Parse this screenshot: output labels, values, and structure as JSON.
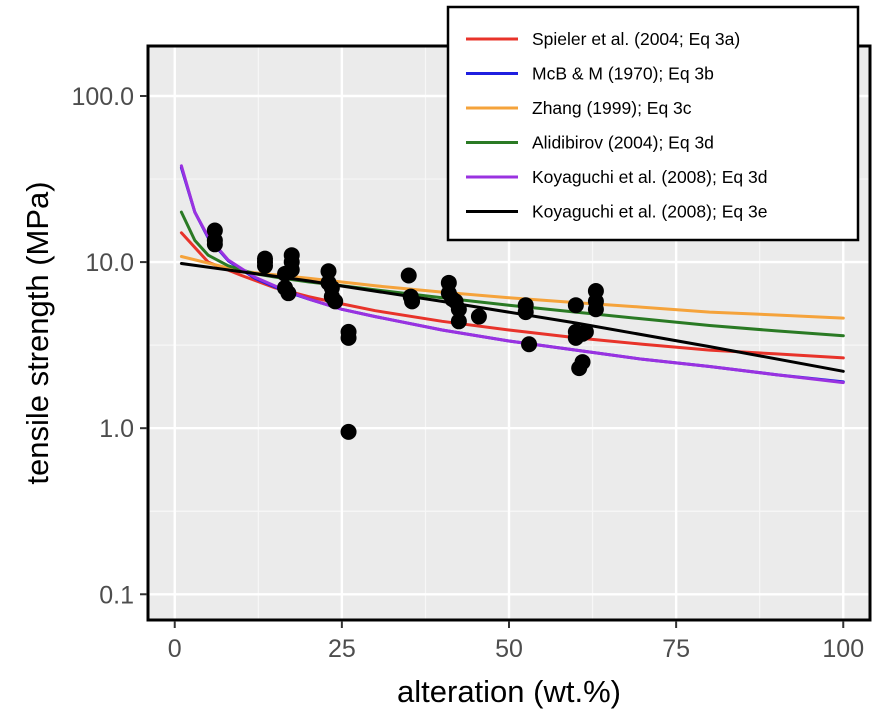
{
  "chart_data": {
    "type": "scatter",
    "xlabel": "alteration (wt.%)",
    "ylabel": "tensile strength (MPa)",
    "xlim": [
      -4,
      104
    ],
    "ylim": [
      0.07,
      200
    ],
    "y_scale": "log",
    "x_ticks": [
      0,
      25,
      50,
      75,
      100
    ],
    "x_tick_labels": [
      "0",
      "25",
      "50",
      "75",
      "100"
    ],
    "y_ticks": [
      0.1,
      1,
      10,
      100
    ],
    "y_tick_labels": [
      "0.1",
      "1.0",
      "10.0",
      "100.0"
    ],
    "grid": true,
    "panel_background": "#ebebeb",
    "legend_position": "top-right",
    "points": {
      "color": "#000000",
      "x": [
        6,
        6,
        6,
        13.5,
        13.5,
        13.5,
        16.5,
        16.5,
        17,
        17.5,
        17.5,
        17.5,
        23,
        23,
        23.5,
        23.5,
        24,
        26,
        26,
        26,
        35,
        35.3,
        35.5,
        41,
        41,
        41.5,
        42,
        42.5,
        42.5,
        45.5,
        52.5,
        52.5,
        53,
        60,
        60,
        60,
        60.5,
        61,
        61,
        61.5,
        63,
        63,
        63
      ],
      "y": [
        15.5,
        13.5,
        12.8,
        10.5,
        10,
        9.5,
        8.5,
        7,
        6.5,
        11,
        10,
        9,
        8.8,
        7.5,
        7,
        6.2,
        5.8,
        3.8,
        3.5,
        0.95,
        8.3,
        6.2,
        5.8,
        7.5,
        6.5,
        6,
        5.8,
        5.2,
        4.4,
        4.7,
        5.5,
        5,
        3.2,
        5.5,
        3.8,
        3.5,
        2.3,
        3.7,
        2.5,
        3.8,
        6.7,
        5.8,
        5.2
      ]
    },
    "series": [
      {
        "name": "Spieler et al. (2004; Eq 3a)",
        "color": "#e8332a",
        "x": [
          1,
          5,
          10,
          15,
          20,
          25,
          30,
          40,
          50,
          60,
          70,
          80,
          90,
          100
        ],
        "y": [
          15,
          10,
          8.3,
          7.0,
          6.2,
          5.6,
          5.1,
          4.4,
          3.9,
          3.5,
          3.2,
          2.95,
          2.8,
          2.65
        ]
      },
      {
        "name": "McB & M (1970); Eq 3b",
        "color": "#1f1fe0",
        "x": [
          1,
          3,
          5,
          8,
          12,
          16,
          20,
          25,
          30,
          40,
          50,
          60,
          70,
          80,
          90,
          100
        ],
        "y": [
          37,
          20,
          14,
          10.2,
          8.0,
          6.8,
          6.0,
          5.2,
          4.7,
          3.9,
          3.35,
          2.95,
          2.6,
          2.35,
          2.1,
          1.9
        ]
      },
      {
        "name": "Zhang (1999); Eq 3c",
        "color": "#f5a33b",
        "x": [
          1,
          10,
          20,
          30,
          40,
          50,
          60,
          70,
          80,
          90,
          100
        ],
        "y": [
          10.8,
          8.8,
          8.0,
          7.2,
          6.6,
          6.1,
          5.7,
          5.35,
          5.0,
          4.8,
          4.6
        ]
      },
      {
        "name": "Alidibirov (2004); Eq 3d",
        "color": "#2a7a24",
        "x": [
          1,
          3,
          5,
          8,
          12,
          16,
          20,
          25,
          30,
          40,
          50,
          60,
          70,
          80,
          90,
          100
        ],
        "y": [
          20,
          13.5,
          11,
          9.5,
          8.5,
          8.0,
          7.6,
          7.2,
          6.8,
          6.1,
          5.5,
          5.0,
          4.55,
          4.15,
          3.85,
          3.6
        ]
      },
      {
        "name": "Koyaguchi et al. (2008); Eq 3d",
        "color": "#9a32e0",
        "x": [
          1,
          3,
          5,
          8,
          12,
          16,
          20,
          25,
          30,
          40,
          50,
          60,
          70,
          80,
          90,
          100
        ],
        "y": [
          38,
          20,
          14.2,
          10.3,
          8.1,
          6.9,
          6.0,
          5.2,
          4.7,
          3.9,
          3.35,
          2.95,
          2.6,
          2.35,
          2.1,
          1.88
        ]
      },
      {
        "name": "Koyaguchi et al. (2008); Eq 3e",
        "color": "#000000",
        "x": [
          1,
          20,
          40,
          60,
          80,
          100
        ],
        "y": [
          9.8,
          7.7,
          5.8,
          4.3,
          3.1,
          2.2
        ]
      }
    ]
  }
}
